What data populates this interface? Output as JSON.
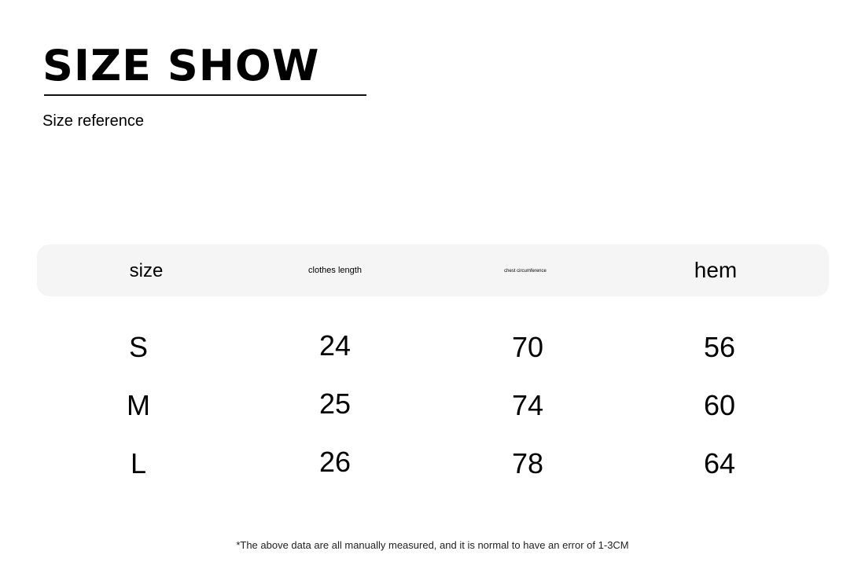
{
  "title": "SIZE SHOW",
  "subtitle": "Size reference",
  "table": {
    "headers": [
      "size",
      "clothes length",
      "chest circumference",
      "hem"
    ],
    "rows": [
      [
        "S",
        "24",
        "70",
        "56"
      ],
      [
        "M",
        "25",
        "74",
        "60"
      ],
      [
        "L",
        "26",
        "78",
        "64"
      ]
    ]
  },
  "note": "*The above data are all manually measured, and it is normal to have an error of 1-3CM"
}
